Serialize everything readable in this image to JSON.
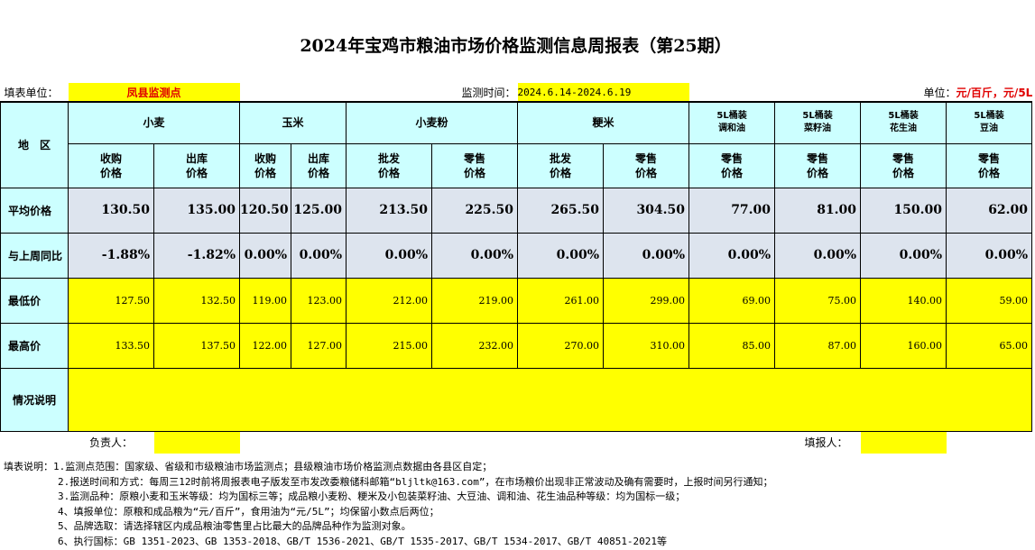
{
  "title": "2024年宝鸡市粮油市场价格监测信息周报表（第25期）",
  "info": {
    "unit_label": "填表单位：",
    "unit_value": "凤县监测点",
    "time_label": "监测时间：",
    "time_value": "2024.6.14-2024.6.19",
    "measure_label": "单位：",
    "measure_value": "元/百斤，元/5L"
  },
  "headers": {
    "region": "地　区",
    "groups": [
      "小麦",
      "玉米",
      "小麦粉",
      "粳米"
    ],
    "oils": [
      [
        "5L桶装",
        "调和油"
      ],
      [
        "5L桶装",
        "菜籽油"
      ],
      [
        "5L桶装",
        "花生油"
      ],
      [
        "5L桶装",
        "豆油"
      ]
    ],
    "sub": [
      [
        "收购",
        "价格"
      ],
      [
        "出库",
        "价格"
      ],
      [
        "收购",
        "价格"
      ],
      [
        "出库",
        "价格"
      ],
      [
        "批发",
        "价格"
      ],
      [
        "零售",
        "价格"
      ],
      [
        "批发",
        "价格"
      ],
      [
        "零售",
        "价格"
      ],
      [
        "零售",
        "价格"
      ],
      [
        "零售",
        "价格"
      ],
      [
        "零售",
        "价格"
      ],
      [
        "零售",
        "价格"
      ]
    ]
  },
  "rows": [
    {
      "label": "平均价格",
      "values": [
        "130.50",
        "135.00",
        "120.50",
        "125.00",
        "213.50",
        "225.50",
        "265.50",
        "304.50",
        "77.00",
        "81.00",
        "150.00",
        "62.00"
      ]
    },
    {
      "label": "与上周同比",
      "values": [
        "-1.88%",
        "-1.82%",
        "0.00%",
        "0.00%",
        "0.00%",
        "0.00%",
        "0.00%",
        "0.00%",
        "0.00%",
        "0.00%",
        "0.00%",
        "0.00%"
      ]
    },
    {
      "label": "最低价",
      "values": [
        "127.50",
        "132.50",
        "119.00",
        "123.00",
        "212.00",
        "219.00",
        "261.00",
        "299.00",
        "69.00",
        "75.00",
        "140.00",
        "59.00"
      ]
    },
    {
      "label": "最高价",
      "values": [
        "133.50",
        "137.50",
        "122.00",
        "127.00",
        "215.00",
        "232.00",
        "270.00",
        "310.00",
        "85.00",
        "87.00",
        "160.00",
        "65.00"
      ]
    }
  ],
  "situation_label": "情况说明",
  "responsible_label": "负责人：",
  "reporter_label": "填报人：",
  "notes": [
    "填表说明：1.监测点范围：国家级、省级和市级粮油市场监测点；县级粮油市场价格监测点数据由各县区自定；",
    "2.报送时间和方式：每周三12时前将周报表电子版发至市发改委粮储科邮箱“bljltk@163.com”，在市场粮价出现非正常波动及确有需要时，上报时间另行通知；",
    "3.监测品种：原粮小麦和玉米等级：均为国标三等；成品粮小麦粉、粳米及小包装菜籽油、大豆油、调和油、花生油品种等级：均为国标一级；",
    "4、填报单位：原粮和成品粮为“元/百斤”，食用油为“元/5L”；均保留小数点后两位；",
    "5、品牌选取：请选择辖区内成品粮油零售里占比最大的品牌品种作为监测对象。",
    "6、执行国标：GB 1351-2023、GB 1353-2018、GB/T 1536-2021、GB/T 1535-2017、GB/T 1534-2017、GB/T 40851-2021等"
  ]
}
